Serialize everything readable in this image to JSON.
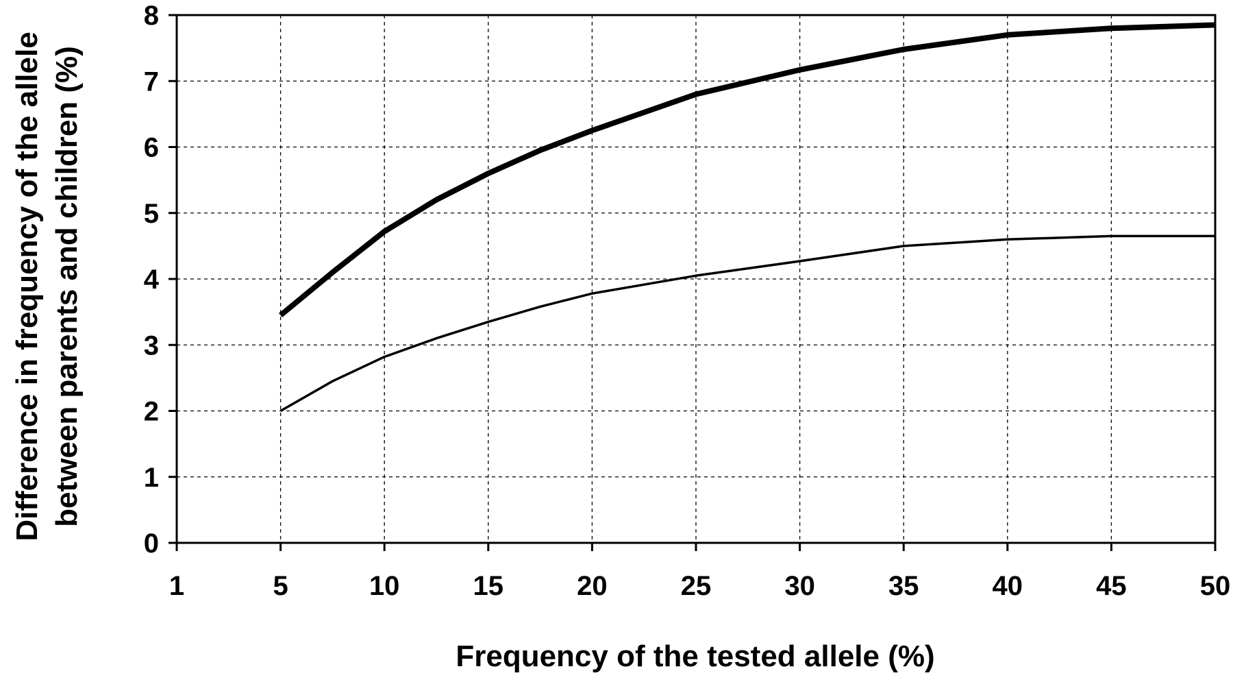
{
  "chart_data": {
    "type": "line",
    "title": "",
    "xlabel": "Frequency of the tested allele (%)",
    "ylabel_line1": "Difference in frequency of the allele",
    "ylabel_line2": "between parents and children (%)",
    "x_tick_labels": [
      "1",
      "5",
      "10",
      "15",
      "20",
      "25",
      "30",
      "35",
      "40",
      "45",
      "50"
    ],
    "y_tick_labels": [
      "0",
      "1",
      "2",
      "3",
      "4",
      "5",
      "6",
      "7",
      "8"
    ],
    "ylim": [
      0,
      8
    ],
    "grid": true,
    "legend": "none",
    "series": [
      {
        "style": "thick",
        "x": [
          "5",
          "7.5",
          "10",
          "12.5",
          "15",
          "17.5",
          "20",
          "25",
          "30",
          "35",
          "40",
          "45",
          "50"
        ],
        "values": [
          3.45,
          4.1,
          4.72,
          5.2,
          5.6,
          5.95,
          6.25,
          6.8,
          7.17,
          7.48,
          7.7,
          7.8,
          7.85
        ]
      },
      {
        "style": "thin",
        "x": [
          "5",
          "7.5",
          "10",
          "12.5",
          "15",
          "17.5",
          "20",
          "25",
          "30",
          "35",
          "40",
          "45",
          "50"
        ],
        "values": [
          2.0,
          2.45,
          2.82,
          3.1,
          3.35,
          3.58,
          3.78,
          4.05,
          4.27,
          4.5,
          4.6,
          4.65,
          4.65
        ]
      }
    ]
  }
}
